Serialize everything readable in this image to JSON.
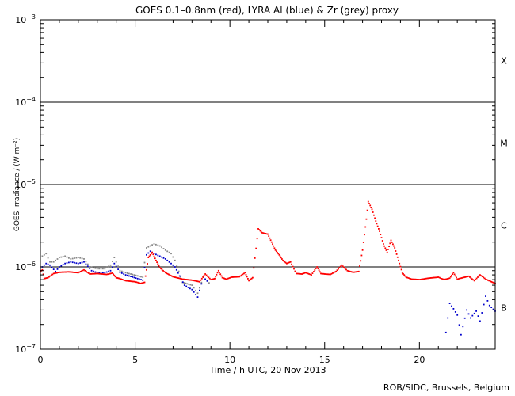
{
  "chart_data": {
    "type": "scatter",
    "title": "GOES 0.1–0.8nm (red), LYRA Al (blue) & Zr (grey) proxy",
    "xlabel": "Time / h UTC, 20 Nov 2013",
    "ylabel": "GOES Irradiance / (W m⁻²)",
    "xlim": [
      0,
      24
    ],
    "ylim": [
      1e-07,
      0.001
    ],
    "yscale": "log",
    "x_ticks": [
      0,
      5,
      10,
      15,
      20
    ],
    "y_ticks": [
      {
        "value": 1e-07,
        "base": "10",
        "exp": "−7"
      },
      {
        "value": 1e-06,
        "base": "10",
        "exp": "−6"
      },
      {
        "value": 1e-05,
        "base": "10",
        "exp": "−5"
      },
      {
        "value": 0.0001,
        "base": "10",
        "exp": "−4"
      },
      {
        "value": 0.001,
        "base": "10",
        "exp": "−3"
      }
    ],
    "flare_class_lines": [
      1e-06,
      1e-05,
      0.0001
    ],
    "flare_classes": [
      {
        "label": "X",
        "value": 0.00032
      },
      {
        "label": "M",
        "value": 3.2e-05
      },
      {
        "label": "C",
        "value": 3.2e-06
      },
      {
        "label": "B",
        "value": 3.2e-07
      }
    ],
    "colors": {
      "goes": "#ff0000",
      "lyra_al": "#0000cc",
      "lyra_zr": "#888888"
    },
    "series": [
      {
        "id": "goes",
        "x": [
          0,
          0.1,
          0.2,
          0.4,
          0.7,
          1.0,
          1.5,
          2.0,
          2.3,
          2.6,
          3.0,
          3.5,
          3.8,
          4.0,
          4.2,
          4.5,
          5.0,
          5.3,
          5.5,
          5.7,
          5.9,
          6.1,
          6.3,
          6.6,
          7.0,
          7.5,
          8.0,
          8.4,
          8.7,
          9.0,
          9.2,
          9.4,
          9.6,
          9.8,
          10.1,
          10.5,
          10.8,
          11.0,
          11.2,
          11.5,
          11.7,
          12.0,
          12.2,
          12.4,
          12.6,
          12.8,
          13.0,
          13.2,
          13.5,
          13.8,
          14.0,
          14.3,
          14.6,
          14.8,
          15.0,
          15.3,
          15.6,
          15.9,
          16.2,
          16.5,
          16.8,
          17.0,
          17.2,
          17.3,
          17.5,
          17.7,
          17.9,
          18.1,
          18.3,
          18.5,
          18.7,
          18.9,
          19.1,
          19.3,
          19.6,
          20.0,
          20.5,
          21.0,
          21.3,
          21.6,
          21.8,
          22.0,
          22.3,
          22.6,
          22.9,
          23.2,
          23.5,
          23.8,
          24.0
        ],
        "y": [
          8.8e-07,
          9.2e-07,
          7.2e-07,
          7.4e-07,
          8.3e-07,
          8.6e-07,
          8.7e-07,
          8.5e-07,
          9.2e-07,
          8.2e-07,
          8.3e-07,
          8.1e-07,
          8.4e-07,
          7.4e-07,
          7.2e-07,
          6.8e-07,
          6.6e-07,
          6.3e-07,
          6.5e-07,
          1.3e-06,
          1.5e-06,
          1.2e-06,
          9.8e-07,
          8.5e-07,
          7.6e-07,
          7.1e-07,
          6.9e-07,
          6.6e-07,
          8.2e-07,
          7e-07,
          7.2e-07,
          9e-07,
          7.4e-07,
          7.1e-07,
          7.5e-07,
          7.6e-07,
          8.5e-07,
          6.8e-07,
          7.4e-07,
          2.9e-06,
          2.6e-06,
          2.5e-06,
          2e-06,
          1.6e-06,
          1.4e-06,
          1.2e-06,
          1.1e-06,
          1.15e-06,
          8.3e-07,
          8.2e-07,
          8.5e-07,
          8e-07,
          1e-06,
          8.3e-07,
          8.2e-07,
          8.1e-07,
          8.8e-07,
          1.05e-06,
          9e-07,
          8.6e-07,
          8.8e-07,
          1.6e-06,
          3.8e-06,
          6.2e-06,
          5e-06,
          3.6e-06,
          2.7e-06,
          1.9e-06,
          1.5e-06,
          2.1e-06,
          1.7e-06,
          1.2e-06,
          8.5e-07,
          7.5e-07,
          7.1e-07,
          7e-07,
          7.3e-07,
          7.5e-07,
          7e-07,
          7.3e-07,
          8.5e-07,
          7.1e-07,
          7.4e-07,
          7.7e-07,
          6.8e-07,
          8e-07,
          7.1e-07,
          6.6e-07,
          6.3e-07
        ]
      },
      {
        "id": "lyra_al",
        "x": [
          0.1,
          0.3,
          0.5,
          0.8,
          1.0,
          1.3,
          1.6,
          2.0,
          2.3,
          2.7,
          3.0,
          3.4,
          3.7,
          3.9,
          4.2,
          4.5,
          5.4,
          5.6,
          5.8,
          6.0,
          6.3,
          6.6,
          6.9,
          7.1,
          7.6,
          8.0,
          8.3,
          8.6,
          8.9,
          21.4,
          21.6,
          21.8,
          22.0,
          22.2,
          22.5,
          22.7,
          23.0,
          23.2,
          23.5,
          23.7,
          24.0
        ],
        "y": [
          1e-06,
          1.1e-06,
          1.05e-06,
          8.8e-07,
          1e-06,
          1.1e-06,
          1.15e-06,
          1.1e-06,
          1.15e-06,
          9e-07,
          8.5e-07,
          8.5e-07,
          9e-07,
          1.1e-06,
          8.6e-07,
          8e-07,
          6.9e-07,
          1.4e-06,
          1.55e-06,
          1.45e-06,
          1.35e-06,
          1.25e-06,
          1.1e-06,
          1e-06,
          6e-07,
          5.3e-07,
          4.3e-07,
          7.5e-07,
          6.4e-07,
          1.6e-07,
          3.6e-07,
          3.1e-07,
          2.6e-07,
          1.5e-07,
          3e-07,
          2.4e-07,
          2.9e-07,
          2.2e-07,
          4.4e-07,
          3.4e-07,
          2.9e-07
        ]
      },
      {
        "id": "lyra_zr",
        "x": [
          0.1,
          0.3,
          0.5,
          0.7,
          1.0,
          1.3,
          1.6,
          2.0,
          2.3,
          2.6,
          3.0,
          3.4,
          3.7,
          3.9,
          4.2,
          4.5,
          5.4,
          5.6,
          5.8,
          6.0,
          6.3,
          6.6,
          6.9,
          7.1,
          7.5,
          8.0,
          8.3,
          8.6,
          8.9
        ],
        "y": [
          1.35e-06,
          1.45e-06,
          1.15e-06,
          1.15e-06,
          1.3e-06,
          1.35e-06,
          1.25e-06,
          1.3e-06,
          1.25e-06,
          1e-06,
          9.5e-07,
          9.5e-07,
          1.05e-06,
          1.3e-06,
          9e-07,
          8.5e-07,
          7.5e-07,
          1.7e-06,
          1.8e-06,
          1.9e-06,
          1.8e-06,
          1.6e-06,
          1.45e-06,
          1.2e-06,
          6.5e-07,
          6e-07,
          4.8e-07,
          7.5e-07,
          6.4e-07
        ]
      }
    ]
  },
  "credit": "ROB/SIDC, Brussels, Belgium"
}
